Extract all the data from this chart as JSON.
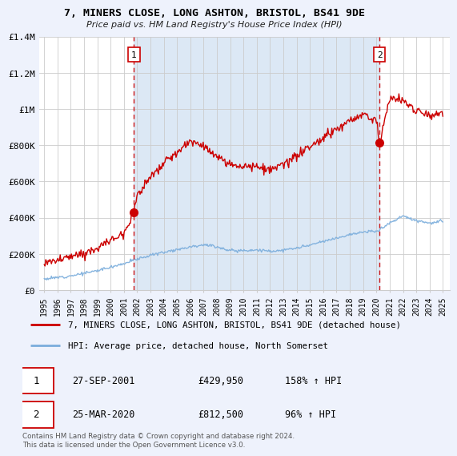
{
  "title": "7, MINERS CLOSE, LONG ASHTON, BRISTOL, BS41 9DE",
  "subtitle": "Price paid vs. HM Land Registry's House Price Index (HPI)",
  "footer": "Contains HM Land Registry data © Crown copyright and database right 2024.\nThis data is licensed under the Open Government Licence v3.0.",
  "legend_line1": "7, MINERS CLOSE, LONG ASHTON, BRISTOL, BS41 9DE (detached house)",
  "legend_line2": "HPI: Average price, detached house, North Somerset",
  "sale1_date": "27-SEP-2001",
  "sale1_price": "£429,950",
  "sale1_hpi": "158% ↑ HPI",
  "sale1_year": 2001.75,
  "sale1_value": 429950,
  "sale2_date": "25-MAR-2020",
  "sale2_price": "£812,500",
  "sale2_hpi": "96% ↑ HPI",
  "sale2_year": 2020.23,
  "sale2_value": 812500,
  "ylim": [
    0,
    1400000
  ],
  "xlim": [
    1994.6,
    2025.5
  ],
  "yticks": [
    0,
    200000,
    400000,
    600000,
    800000,
    1000000,
    1200000,
    1400000
  ],
  "ytick_labels": [
    "£0",
    "£200K",
    "£400K",
    "£600K",
    "£800K",
    "£1M",
    "£1.2M",
    "£1.4M"
  ],
  "xticks": [
    1995,
    1996,
    1997,
    1998,
    1999,
    2000,
    2001,
    2002,
    2003,
    2004,
    2005,
    2006,
    2007,
    2008,
    2009,
    2010,
    2011,
    2012,
    2013,
    2014,
    2015,
    2016,
    2017,
    2018,
    2019,
    2020,
    2021,
    2022,
    2023,
    2024,
    2025
  ],
  "bg_color": "#eef2fc",
  "plot_bg_color": "#ffffff",
  "shade_color": "#dce8f5",
  "red_color": "#cc0000",
  "blue_color": "#7aaddc",
  "grid_color": "#cccccc",
  "hpi_x": [
    1995,
    1996,
    1997,
    1998,
    1999,
    2000,
    2001,
    2002,
    2003,
    2004,
    2005,
    2006,
    2007,
    2008,
    2009,
    2010,
    2011,
    2012,
    2013,
    2014,
    2015,
    2016,
    2017,
    2018,
    2019,
    2020,
    2021,
    2022,
    2023,
    2024,
    2025
  ],
  "hpi_y": [
    62000,
    70000,
    80000,
    93000,
    108000,
    128000,
    148000,
    172000,
    193000,
    210000,
    225000,
    240000,
    252000,
    240000,
    218000,
    220000,
    222000,
    215000,
    220000,
    232000,
    248000,
    268000,
    288000,
    308000,
    320000,
    325000,
    370000,
    410000,
    385000,
    370000,
    380000
  ],
  "red_x": [
    1995,
    1996,
    1997,
    1998,
    1999,
    2000,
    2001,
    2001.75,
    2002,
    2003,
    2004,
    2005,
    2006,
    2007,
    2008,
    2009,
    2010,
    2011,
    2012,
    2013,
    2014,
    2015,
    2016,
    2017,
    2018,
    2019,
    2020,
    2020.23,
    2021,
    2022,
    2023,
    2024,
    2025
  ],
  "red_y": [
    150000,
    165000,
    183000,
    205000,
    232000,
    275000,
    320000,
    429950,
    530000,
    620000,
    700000,
    760000,
    820000,
    800000,
    730000,
    690000,
    690000,
    680000,
    660000,
    690000,
    740000,
    790000,
    840000,
    890000,
    930000,
    970000,
    940000,
    812500,
    1060000,
    1050000,
    990000,
    970000,
    975000
  ],
  "noise_scale_hpi": 4000,
  "noise_scale_red": 12000,
  "random_seed": 12
}
